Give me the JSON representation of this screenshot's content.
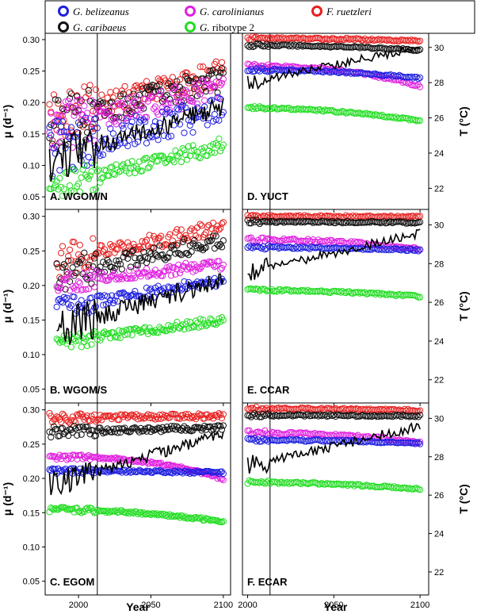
{
  "colors": {
    "belizeanus": "#1f1fe0",
    "carolinianus": "#e020e0",
    "ruetzleri": "#e81f1f",
    "caribaeus": "#111111",
    "ribotype2": "#22dd22",
    "temperature_line": "#000000"
  },
  "chart_data": {
    "type": "scatter",
    "legend": [
      {
        "key": "belizeanus",
        "label": "G. belizeanus",
        "italic": true
      },
      {
        "key": "carolinianus",
        "label": "G. carolinianus",
        "italic": true
      },
      {
        "key": "ruetzleri",
        "label": "F. ruetzleri",
        "italic": true
      },
      {
        "key": "caribaeus",
        "label": "G. caribaeus",
        "italic": true
      },
      {
        "key": "ribotype2",
        "label": "G. ribotype 2",
        "italic": false
      }
    ],
    "legend_italic_part": {
      "ribotype2": "G."
    },
    "legend_plain_part": {
      "ribotype2": " ribotype 2"
    },
    "xlabel": "Year",
    "ylabel_left": "μ (d⁻¹)",
    "ylabel_right": "T (°C)",
    "xticks": [
      2000,
      2050,
      2100
    ],
    "yticks_left": [
      "0.05",
      "0.10",
      "0.15",
      "0.20",
      "0.25",
      "0.30"
    ],
    "yticks_right": [
      "22",
      "24",
      "26",
      "28",
      "30"
    ],
    "ylim_left": [
      0.03,
      0.31
    ],
    "ylim_right": [
      20.8,
      30.8
    ],
    "vline_year": 2013,
    "panels": [
      {
        "label": "A. WGOM/N",
        "xlim": [
          1977,
          2105
        ],
        "start": 1980,
        "series": {
          "ruetzleri": {
            "y0": 0.175,
            "y1": 0.248,
            "jitter": 0.02,
            "shape": 0.0
          },
          "caribaeus": {
            "y0": 0.165,
            "y1": 0.238,
            "jitter": 0.02,
            "shape": 0.0
          },
          "carolinianus": {
            "y0": 0.16,
            "y1": 0.222,
            "jitter": 0.02,
            "shape": 0.0
          },
          "belizeanus": {
            "y0": 0.118,
            "y1": 0.19,
            "jitter": 0.025,
            "shape": 0.0
          },
          "ribotype2": {
            "y0": 0.065,
            "y1": 0.132,
            "jitter": 0.012,
            "shape": 0.0
          }
        },
        "temp": {
          "y0": 23.5,
          "y1": 26.7,
          "jitter": 0.6,
          "shape": 0.0
        }
      },
      {
        "label": "D. YUCT",
        "xlim": [
          1997,
          2105
        ],
        "start": 2000,
        "series": {
          "ruetzleri": {
            "y0": 0.302,
            "y1": 0.298,
            "jitter": 0.0015,
            "shape": 1.0
          },
          "caribaeus": {
            "y0": 0.291,
            "y1": 0.283,
            "jitter": 0.0015,
            "shape": 1.0
          },
          "carolinianus": {
            "y0": 0.258,
            "y1": 0.226,
            "jitter": 0.002,
            "shape": 1.4
          },
          "belizeanus": {
            "y0": 0.252,
            "y1": 0.239,
            "jitter": 0.0015,
            "shape": 1.0
          },
          "ribotype2": {
            "y0": 0.191,
            "y1": 0.171,
            "jitter": 0.0015,
            "shape": 1.0
          }
        },
        "temp": {
          "y0": 28.0,
          "y1": 30.0,
          "jitter": 0.25,
          "shape": 0.0
        }
      },
      {
        "label": "B. WGOM/S",
        "xlim": [
          1977,
          2105
        ],
        "start": 1985,
        "series": {
          "ruetzleri": {
            "y0": 0.235,
            "y1": 0.285,
            "jitter": 0.012,
            "shape": 0.0
          },
          "caribaeus": {
            "y0": 0.215,
            "y1": 0.267,
            "jitter": 0.012,
            "shape": 0.0
          },
          "carolinianus": {
            "y0": 0.205,
            "y1": 0.23,
            "jitter": 0.008,
            "shape": 0.0
          },
          "belizeanus": {
            "y0": 0.168,
            "y1": 0.207,
            "jitter": 0.008,
            "shape": 0.0
          },
          "ribotype2": {
            "y0": 0.118,
            "y1": 0.15,
            "jitter": 0.006,
            "shape": 0.0
          }
        },
        "temp": {
          "y0": 24.6,
          "y1": 27.2,
          "jitter": 0.5,
          "shape": 0.0
        }
      },
      {
        "label": "E. CCAR",
        "xlim": [
          1997,
          2105
        ],
        "start": 2000,
        "series": {
          "ruetzleri": {
            "y0": 0.3,
            "y1": 0.299,
            "jitter": 0.0015,
            "shape": 1.0
          },
          "caribaeus": {
            "y0": 0.292,
            "y1": 0.291,
            "jitter": 0.0015,
            "shape": 1.0
          },
          "carolinianus": {
            "y0": 0.266,
            "y1": 0.252,
            "jitter": 0.002,
            "shape": 1.4
          },
          "belizeanus": {
            "y0": 0.255,
            "y1": 0.251,
            "jitter": 0.0015,
            "shape": 1.0
          },
          "ribotype2": {
            "y0": 0.193,
            "y1": 0.184,
            "jitter": 0.0015,
            "shape": 1.0
          }
        },
        "temp": {
          "y0": 27.5,
          "y1": 29.6,
          "jitter": 0.25,
          "shape": 0.0
        }
      },
      {
        "label": "C. EGOM",
        "xlim": [
          1977,
          2105
        ],
        "start": 1980,
        "series": {
          "ruetzleri": {
            "y0": 0.288,
            "y1": 0.291,
            "jitter": 0.004,
            "shape": 0.0
          },
          "caribaeus": {
            "y0": 0.268,
            "y1": 0.274,
            "jitter": 0.004,
            "shape": 0.0
          },
          "carolinianus": {
            "y0": 0.231,
            "y1": 0.199,
            "jitter": 0.002,
            "shape": 1.6
          },
          "belizeanus": {
            "y0": 0.211,
            "y1": 0.208,
            "jitter": 0.002,
            "shape": 1.0
          },
          "ribotype2": {
            "y0": 0.154,
            "y1": 0.137,
            "jitter": 0.002,
            "shape": 1.0
          }
        },
        "temp": {
          "y0": 26.5,
          "y1": 29.2,
          "jitter": 0.3,
          "shape": 0.0
        }
      },
      {
        "label": "F. ECAR",
        "xlim": [
          1997,
          2105
        ],
        "start": 2000,
        "series": {
          "ruetzleri": {
            "y0": 0.302,
            "y1": 0.299,
            "jitter": 0.0015,
            "shape": 1.0
          },
          "caribaeus": {
            "y0": 0.292,
            "y1": 0.291,
            "jitter": 0.0015,
            "shape": 1.0
          },
          "carolinianus": {
            "y0": 0.266,
            "y1": 0.252,
            "jitter": 0.002,
            "shape": 1.4
          },
          "belizeanus": {
            "y0": 0.256,
            "y1": 0.251,
            "jitter": 0.0015,
            "shape": 1.0
          },
          "ribotype2": {
            "y0": 0.194,
            "y1": 0.184,
            "jitter": 0.0015,
            "shape": 1.0
          }
        },
        "temp": {
          "y0": 27.5,
          "y1": 29.6,
          "jitter": 0.25,
          "shape": 0.0
        }
      }
    ]
  }
}
